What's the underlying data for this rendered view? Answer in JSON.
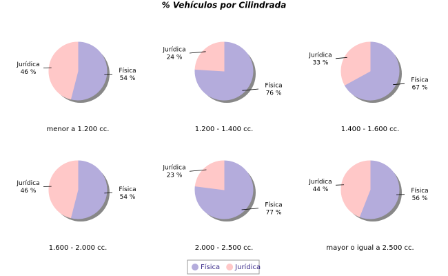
{
  "title": "% Vehículos por Cilindrada",
  "chart_data": [
    {
      "type": "pie",
      "label": "menor a 1.200 cc.",
      "categories": [
        "Física",
        "Jurídica"
      ],
      "values": [
        54,
        46
      ],
      "value_labels": [
        "54 %",
        "46 %"
      ],
      "colors": [
        "#b4acdc",
        "#ffc8c8"
      ]
    },
    {
      "type": "pie",
      "label": "1.200 - 1.400 cc.",
      "categories": [
        "Física",
        "Jurídica"
      ],
      "values": [
        76,
        24
      ],
      "value_labels": [
        "76 %",
        "24 %"
      ],
      "colors": [
        "#b4acdc",
        "#ffc8c8"
      ]
    },
    {
      "type": "pie",
      "label": "1.400 - 1.600 cc.",
      "categories": [
        "Física",
        "Jurídica"
      ],
      "values": [
        67,
        33
      ],
      "value_labels": [
        "67 %",
        "33 %"
      ],
      "colors": [
        "#b4acdc",
        "#ffc8c8"
      ]
    },
    {
      "type": "pie",
      "label": "1.600 - 2.000 cc.",
      "categories": [
        "Física",
        "Jurídica"
      ],
      "values": [
        54,
        46
      ],
      "value_labels": [
        "54 %",
        "46 %"
      ],
      "colors": [
        "#b4acdc",
        "#ffc8c8"
      ]
    },
    {
      "type": "pie",
      "label": "2.000 - 2.500 cc.",
      "categories": [
        "Física",
        "Jurídica"
      ],
      "values": [
        77,
        23
      ],
      "value_labels": [
        "77 %",
        "23 %"
      ],
      "colors": [
        "#b4acdc",
        "#ffc8c8"
      ]
    },
    {
      "type": "pie",
      "label": "mayor o igual a 2.500 cc.",
      "categories": [
        "Física",
        "Jurídica"
      ],
      "values": [
        56,
        44
      ],
      "value_labels": [
        "56 %",
        "44 %"
      ],
      "colors": [
        "#b4acdc",
        "#ffc8c8"
      ]
    }
  ]
}
